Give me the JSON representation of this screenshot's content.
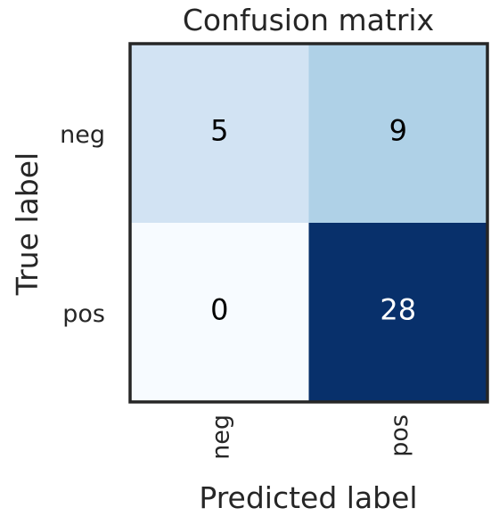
{
  "chart_data": {
    "type": "heatmap",
    "title": "Confusion matrix",
    "xlabel": "Predicted label",
    "ylabel": "True label",
    "x_categories": [
      "neg",
      "pos"
    ],
    "y_categories": [
      "neg",
      "pos"
    ],
    "values": [
      [
        5,
        9
      ],
      [
        0,
        28
      ]
    ],
    "colormap": "Blues",
    "value_range": [
      0,
      28
    ],
    "grid": false,
    "colors": {
      "cell_neg_neg": "#d2e3f3",
      "cell_neg_pos": "#afd1e7",
      "cell_pos_neg": "#f7fbff",
      "cell_pos_pos": "#08306b",
      "frame": "#262626",
      "text_dark": "#000000",
      "text_light": "#ffffff",
      "axis_text": "#262626"
    }
  }
}
